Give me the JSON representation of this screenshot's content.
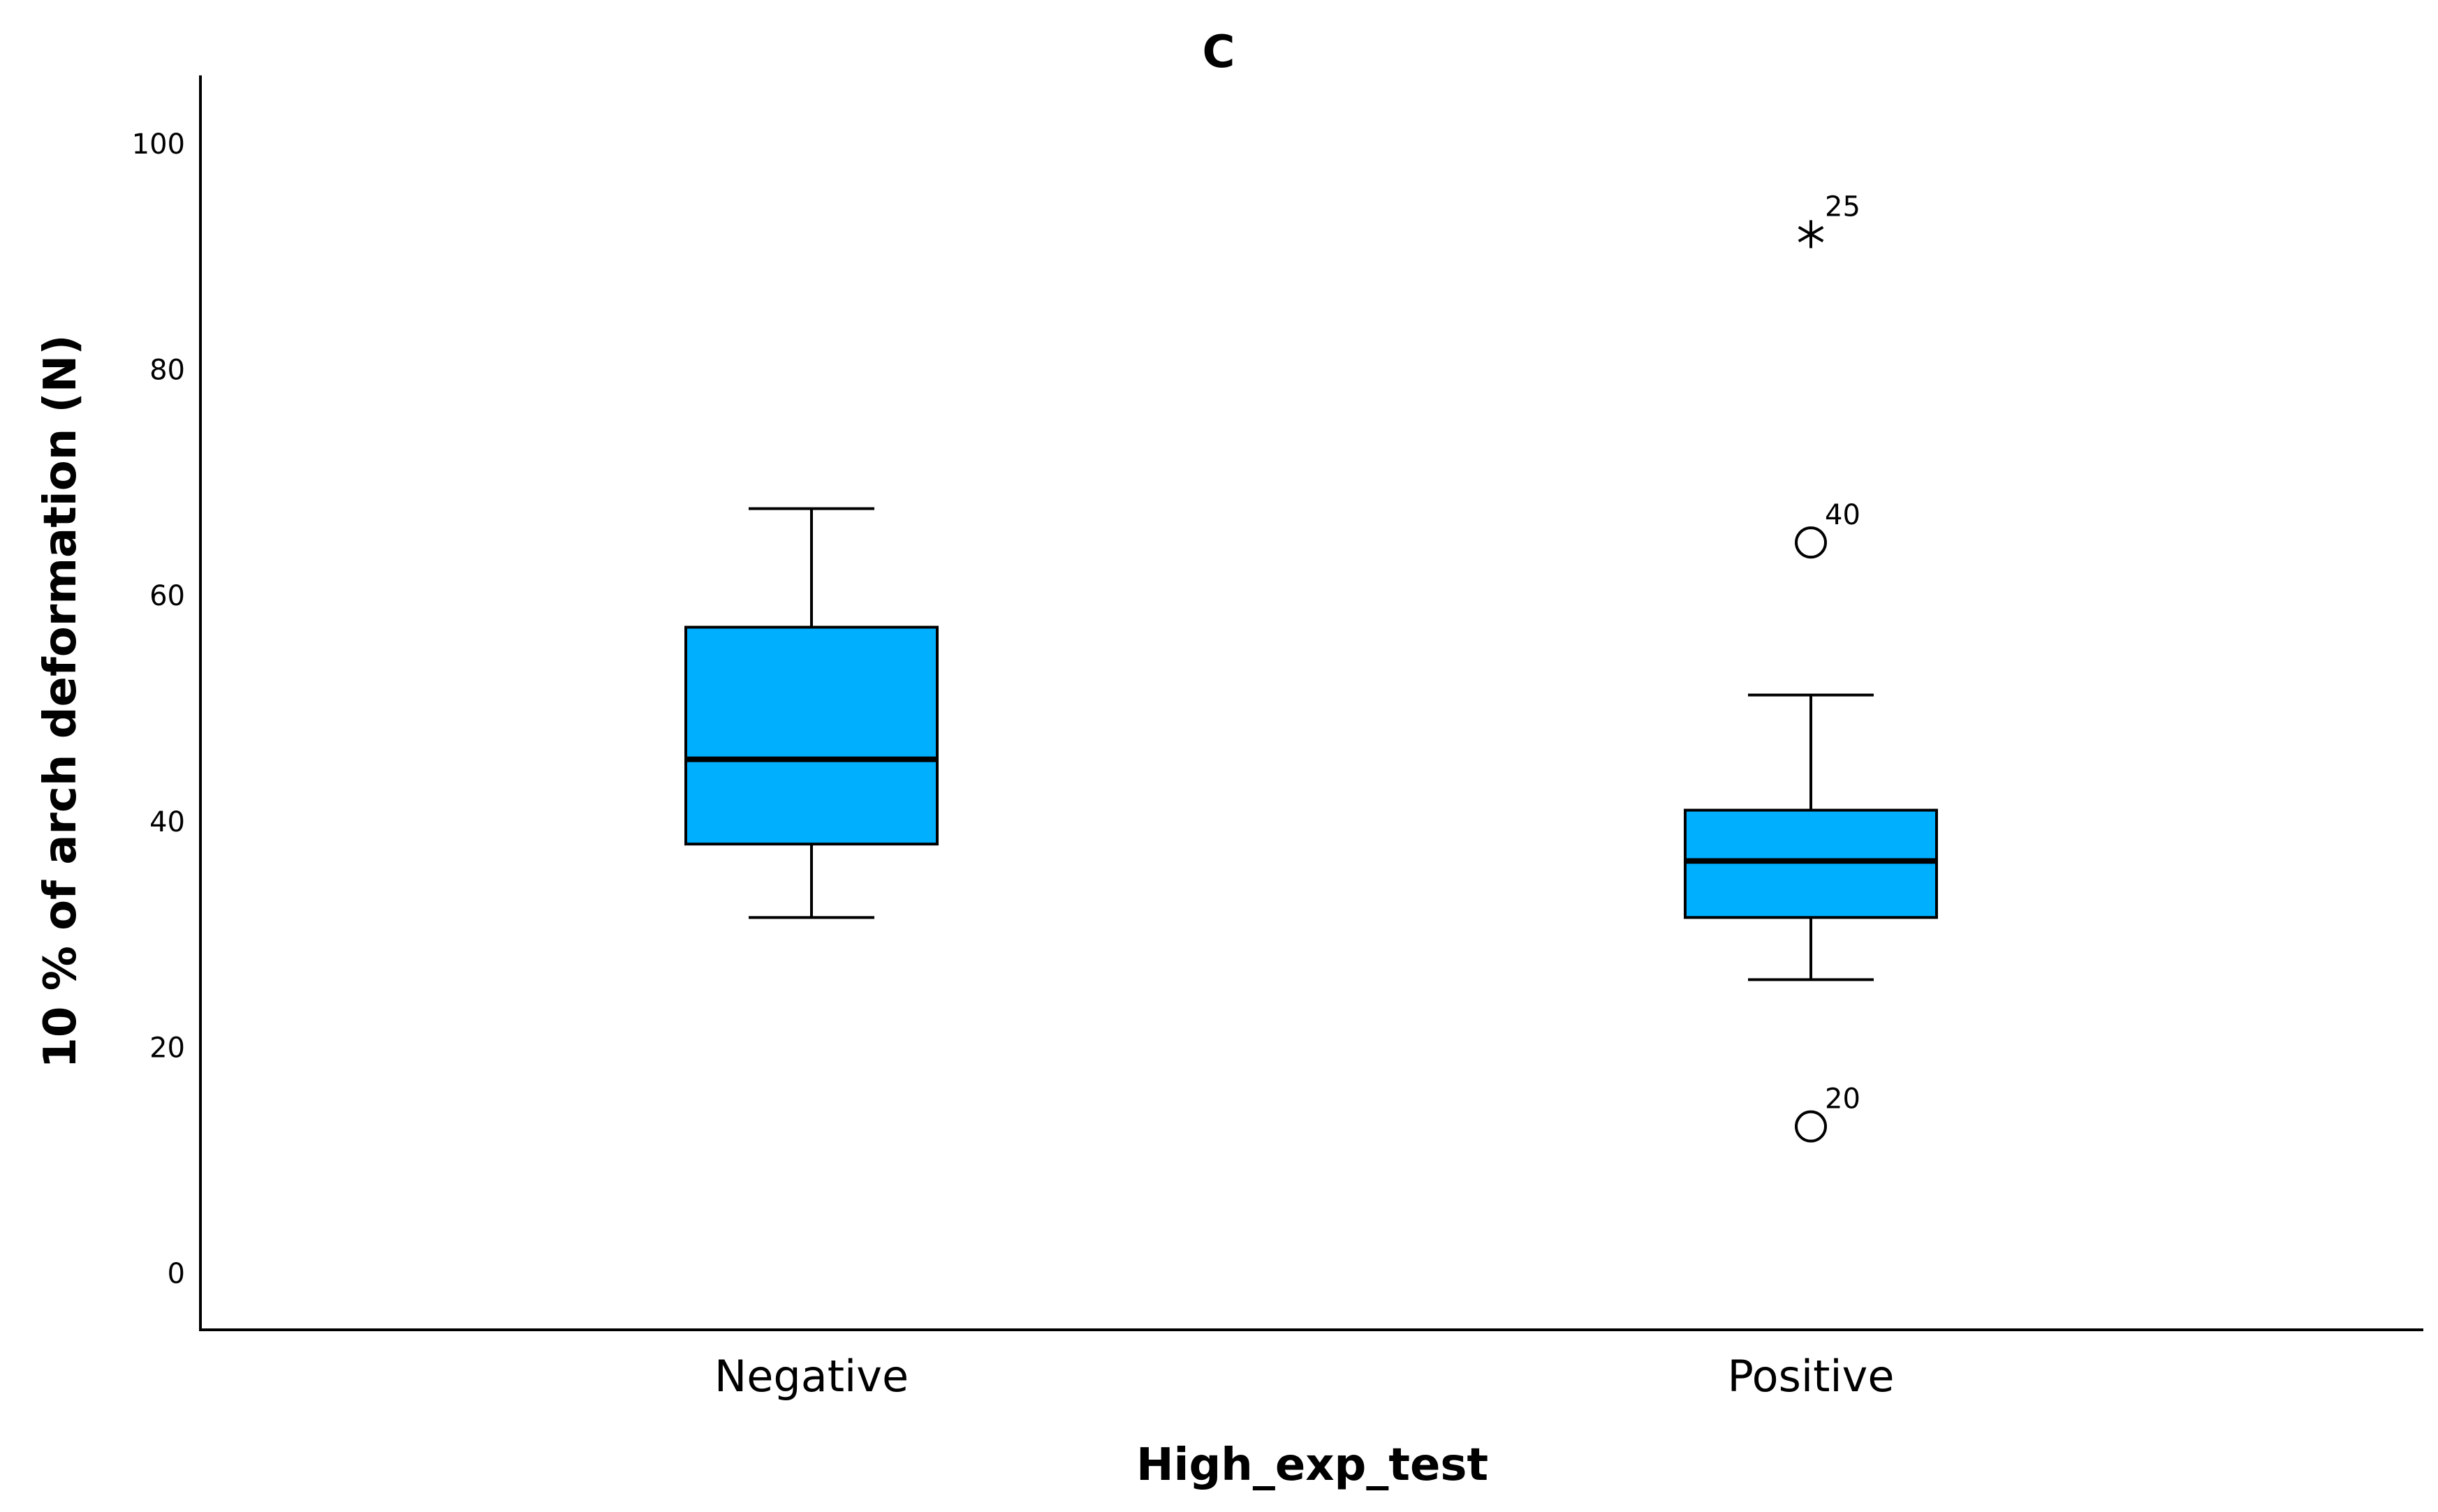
{
  "chart_data": {
    "type": "box",
    "title": "C",
    "xlabel": "High_exp_test",
    "ylabel": "10 % of arch deformation (N)",
    "ylim": [
      -5,
      106
    ],
    "yticks": [
      0,
      20,
      40,
      60,
      80,
      100
    ],
    "ytick_labels": [
      "0",
      "20",
      "40",
      "60",
      "80",
      "100"
    ],
    "box_color": "#00b0ff",
    "grid": false,
    "categories": [
      "Negative",
      "Positive"
    ],
    "groups": [
      {
        "category": "Negative",
        "whisker_low": 31.5,
        "q1": 38,
        "median": 45.5,
        "q3": 57.2,
        "whisker_high": 67.7,
        "outliers": []
      },
      {
        "category": "Positive",
        "whisker_low": 26,
        "q1": 31.5,
        "median": 36.5,
        "q3": 41,
        "whisker_high": 51.2,
        "outliers": [
          {
            "value": 92,
            "label": "25",
            "marker": "star"
          },
          {
            "value": 64.7,
            "label": "40",
            "marker": "circle"
          },
          {
            "value": 13,
            "label": "20",
            "marker": "circle"
          }
        ]
      }
    ]
  }
}
